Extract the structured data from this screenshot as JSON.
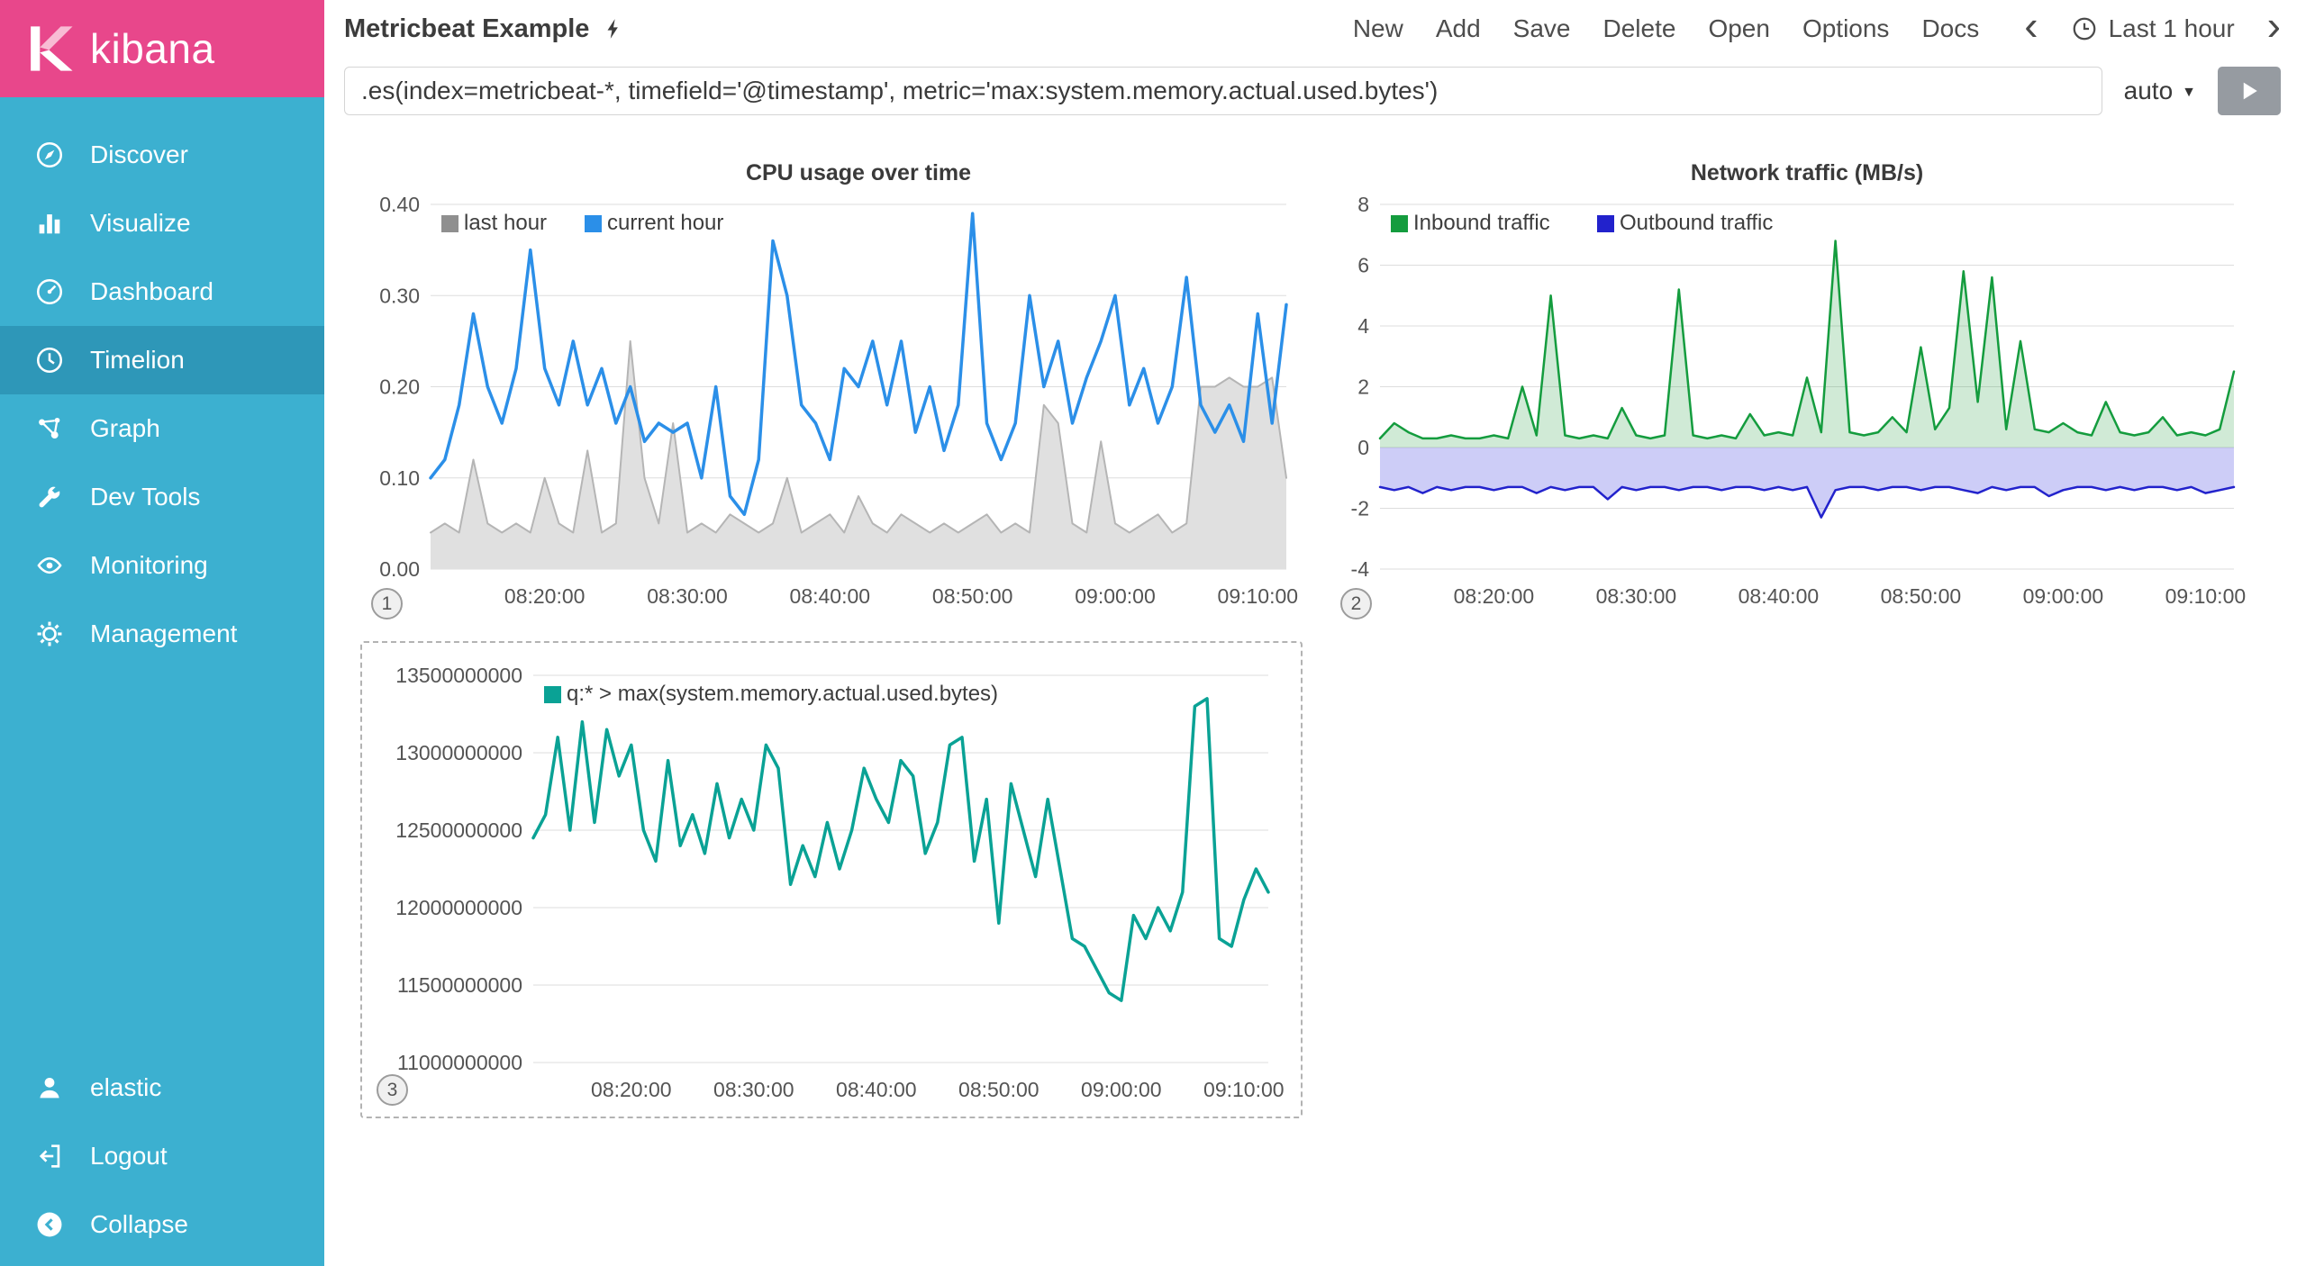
{
  "sidebar": {
    "logo_text": "kibana",
    "items": [
      {
        "label": "Discover"
      },
      {
        "label": "Visualize"
      },
      {
        "label": "Dashboard"
      },
      {
        "label": "Timelion"
      },
      {
        "label": "Graph"
      },
      {
        "label": "Dev Tools"
      },
      {
        "label": "Monitoring"
      },
      {
        "label": "Management"
      }
    ],
    "footer_items": [
      {
        "label": "elastic"
      },
      {
        "label": "Logout"
      },
      {
        "label": "Collapse"
      }
    ]
  },
  "topbar": {
    "title": "Metricbeat Example",
    "menu": [
      "New",
      "Add",
      "Save",
      "Delete",
      "Open",
      "Options",
      "Docs"
    ],
    "timepicker": "Last 1 hour"
  },
  "icons": {
    "time_back": "‹",
    "time_forward": "›",
    "interval_caret": "▼"
  },
  "querybar": {
    "query": ".es(index=metricbeat-*, timefield='@timestamp', metric='max:system.memory.actual.used.bytes')",
    "interval": "auto"
  },
  "panels": [
    {
      "number": "1"
    },
    {
      "number": "2"
    },
    {
      "number": "3"
    }
  ],
  "colors": {
    "sidebar_teal": "#3cb0d0",
    "sidebar_active": "#2e97b8",
    "logo_pink": "#e8478b",
    "cpu_current_blue": "#2b8fe8",
    "cpu_last_gray": "#8f8f8f",
    "inbound_green": "#149c3e",
    "outbound_blue": "#2222cc",
    "memory_teal": "#0aa295"
  },
  "chart_data": [
    {
      "type": "area",
      "title": "CPU usage over time",
      "ylim": [
        0,
        0.4
      ],
      "yticks": [
        {
          "v": 0,
          "label": "0.00"
        },
        {
          "v": 0.1,
          "label": "0.10"
        },
        {
          "v": 0.2,
          "label": "0.20"
        },
        {
          "v": 0.3,
          "label": "0.30"
        },
        {
          "v": 0.4,
          "label": "0.40"
        }
      ],
      "x_ticks": [
        {
          "i": 8,
          "label": "08:20:00"
        },
        {
          "i": 18,
          "label": "08:30:00"
        },
        {
          "i": 28,
          "label": "08:40:00"
        },
        {
          "i": 38,
          "label": "08:50:00"
        },
        {
          "i": 48,
          "label": "09:00:00"
        },
        {
          "i": 58,
          "label": "09:10:00"
        }
      ],
      "legend_position": "top-left",
      "grid": "horizontal",
      "series": [
        {
          "name": "last hour",
          "color": "#b5b5b5",
          "legend_color": "#8f8f8f",
          "fill": "#e0e0e0",
          "fill_to": 0,
          "lw": 2,
          "values": [
            0.04,
            0.05,
            0.04,
            0.12,
            0.05,
            0.04,
            0.05,
            0.04,
            0.1,
            0.05,
            0.04,
            0.13,
            0.04,
            0.05,
            0.25,
            0.1,
            0.05,
            0.16,
            0.04,
            0.05,
            0.04,
            0.06,
            0.05,
            0.04,
            0.05,
            0.1,
            0.04,
            0.05,
            0.06,
            0.04,
            0.08,
            0.05,
            0.04,
            0.06,
            0.05,
            0.04,
            0.05,
            0.04,
            0.05,
            0.06,
            0.04,
            0.05,
            0.04,
            0.18,
            0.16,
            0.05,
            0.04,
            0.14,
            0.05,
            0.04,
            0.05,
            0.06,
            0.04,
            0.05,
            0.2,
            0.2,
            0.21,
            0.2,
            0.2,
            0.21,
            0.1
          ]
        },
        {
          "name": "current hour",
          "color": "#2b8fe8",
          "lw": 3.5,
          "values": [
            0.1,
            0.12,
            0.18,
            0.28,
            0.2,
            0.16,
            0.22,
            0.35,
            0.22,
            0.18,
            0.25,
            0.18,
            0.22,
            0.16,
            0.2,
            0.14,
            0.16,
            0.15,
            0.16,
            0.1,
            0.2,
            0.08,
            0.06,
            0.12,
            0.36,
            0.3,
            0.18,
            0.16,
            0.12,
            0.22,
            0.2,
            0.25,
            0.18,
            0.25,
            0.15,
            0.2,
            0.13,
            0.18,
            0.39,
            0.16,
            0.12,
            0.16,
            0.3,
            0.2,
            0.25,
            0.16,
            0.21,
            0.25,
            0.3,
            0.18,
            0.22,
            0.16,
            0.2,
            0.32,
            0.18,
            0.15,
            0.18,
            0.14,
            0.28,
            0.16,
            0.29
          ]
        }
      ]
    },
    {
      "type": "area",
      "title": "Network traffic (MB/s)",
      "ylim": [
        -4,
        8
      ],
      "yticks": [
        {
          "v": -4,
          "label": "-4"
        },
        {
          "v": -2,
          "label": "-2"
        },
        {
          "v": 0,
          "label": "0"
        },
        {
          "v": 2,
          "label": "2"
        },
        {
          "v": 4,
          "label": "4"
        },
        {
          "v": 6,
          "label": "6"
        },
        {
          "v": 8,
          "label": "8"
        }
      ],
      "x_ticks": [
        {
          "i": 8,
          "label": "08:20:00"
        },
        {
          "i": 18,
          "label": "08:30:00"
        },
        {
          "i": 28,
          "label": "08:40:00"
        },
        {
          "i": 38,
          "label": "08:50:00"
        },
        {
          "i": 48,
          "label": "09:00:00"
        },
        {
          "i": 58,
          "label": "09:10:00"
        }
      ],
      "legend_position": "top-left",
      "grid": "horizontal",
      "series": [
        {
          "name": "Inbound traffic",
          "color": "#149c3e",
          "fill": "rgba(40,160,70,0.22)",
          "fill_to": 0,
          "lw": 2.5,
          "values": [
            0.3,
            0.8,
            0.5,
            0.3,
            0.3,
            0.4,
            0.3,
            0.3,
            0.4,
            0.3,
            2.0,
            0.4,
            5.0,
            0.4,
            0.3,
            0.4,
            0.3,
            1.3,
            0.4,
            0.3,
            0.4,
            5.2,
            0.4,
            0.3,
            0.4,
            0.3,
            1.1,
            0.4,
            0.5,
            0.4,
            2.3,
            0.5,
            6.8,
            0.5,
            0.4,
            0.5,
            1.0,
            0.5,
            3.3,
            0.6,
            1.3,
            5.8,
            1.5,
            5.6,
            0.6,
            3.5,
            0.6,
            0.5,
            0.8,
            0.5,
            0.4,
            1.5,
            0.5,
            0.4,
            0.5,
            1.0,
            0.4,
            0.5,
            0.4,
            0.6,
            2.5
          ]
        },
        {
          "name": "Outbound traffic",
          "color": "#2222cc",
          "fill": "rgba(90,90,230,0.30)",
          "fill_to": 0,
          "lw": 2.5,
          "values": [
            -1.3,
            -1.4,
            -1.3,
            -1.5,
            -1.3,
            -1.4,
            -1.3,
            -1.3,
            -1.4,
            -1.3,
            -1.3,
            -1.5,
            -1.3,
            -1.4,
            -1.3,
            -1.3,
            -1.7,
            -1.3,
            -1.4,
            -1.3,
            -1.3,
            -1.4,
            -1.3,
            -1.3,
            -1.4,
            -1.3,
            -1.3,
            -1.4,
            -1.3,
            -1.4,
            -1.3,
            -2.3,
            -1.4,
            -1.3,
            -1.3,
            -1.4,
            -1.3,
            -1.3,
            -1.4,
            -1.3,
            -1.3,
            -1.4,
            -1.5,
            -1.3,
            -1.4,
            -1.3,
            -1.3,
            -1.6,
            -1.4,
            -1.3,
            -1.3,
            -1.4,
            -1.3,
            -1.4,
            -1.3,
            -1.3,
            -1.4,
            -1.3,
            -1.5,
            -1.4,
            -1.3
          ]
        }
      ]
    },
    {
      "type": "line",
      "title": "",
      "ylim": [
        11000000000,
        13500000000
      ],
      "yticks": [
        {
          "v": 11000000000,
          "label": "11000000000"
        },
        {
          "v": 11500000000,
          "label": "11500000000"
        },
        {
          "v": 12000000000,
          "label": "12000000000"
        },
        {
          "v": 12500000000,
          "label": "12500000000"
        },
        {
          "v": 13000000000,
          "label": "13000000000"
        },
        {
          "v": 13500000000,
          "label": "13500000000"
        }
      ],
      "x_ticks": [
        {
          "i": 8,
          "label": "08:20:00"
        },
        {
          "i": 18,
          "label": "08:30:00"
        },
        {
          "i": 28,
          "label": "08:40:00"
        },
        {
          "i": 38,
          "label": "08:50:00"
        },
        {
          "i": 48,
          "label": "09:00:00"
        },
        {
          "i": 58,
          "label": "09:10:00"
        }
      ],
      "legend_position": "top-left",
      "grid": "horizontal",
      "series": [
        {
          "name": "q:* > max(system.memory.actual.used.bytes)",
          "color": "#0aa295",
          "lw": 3.5,
          "values": [
            12450000000,
            12600000000,
            13100000000,
            12500000000,
            13200000000,
            12550000000,
            13150000000,
            12850000000,
            13050000000,
            12500000000,
            12300000000,
            12950000000,
            12400000000,
            12600000000,
            12350000000,
            12800000000,
            12450000000,
            12700000000,
            12500000000,
            13050000000,
            12900000000,
            12150000000,
            12400000000,
            12200000000,
            12550000000,
            12250000000,
            12500000000,
            12900000000,
            12700000000,
            12550000000,
            12950000000,
            12850000000,
            12350000000,
            12550000000,
            13050000000,
            13100000000,
            12300000000,
            12700000000,
            11900000000,
            12800000000,
            12500000000,
            12200000000,
            12700000000,
            12250000000,
            11800000000,
            11750000000,
            11600000000,
            11450000000,
            11400000000,
            11950000000,
            11800000000,
            12000000000,
            11850000000,
            12100000000,
            13300000000,
            13350000000,
            11800000000,
            11750000000,
            12050000000,
            12250000000,
            12100000000
          ]
        }
      ]
    }
  ]
}
